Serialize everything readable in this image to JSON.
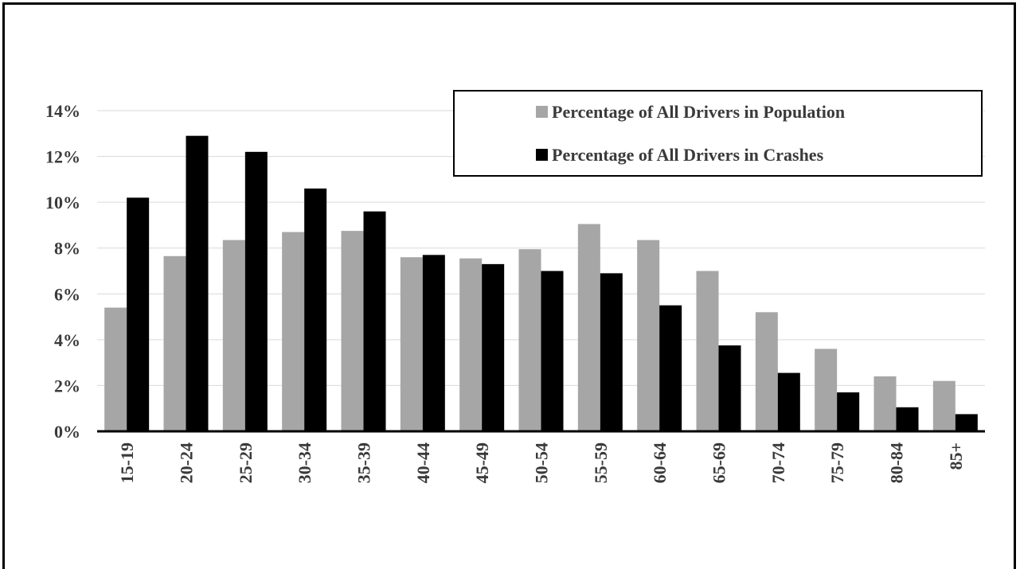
{
  "chart_data": {
    "type": "bar",
    "categories": [
      "15-19",
      "20-24",
      "25-29",
      "30-34",
      "35-39",
      "40-44",
      "45-49",
      "50-54",
      "55-59",
      "60-64",
      "65-69",
      "70-74",
      "75-79",
      "80-84",
      "85+"
    ],
    "series": [
      {
        "name": "Percentage of All Drivers in Population",
        "color": "#a6a6a6",
        "values": [
          5.4,
          7.65,
          8.35,
          8.7,
          8.75,
          7.6,
          7.55,
          7.95,
          9.05,
          8.35,
          7.0,
          5.2,
          3.6,
          2.4,
          2.2
        ]
      },
      {
        "name": "Percentage of All Drivers in Crashes",
        "color": "#000000",
        "values": [
          10.2,
          12.9,
          12.2,
          10.6,
          9.6,
          7.7,
          7.3,
          7.0,
          6.9,
          5.5,
          3.75,
          2.55,
          1.7,
          1.05,
          0.75
        ]
      }
    ],
    "title": "",
    "xlabel": "",
    "ylabel": "",
    "ylim": [
      0,
      14
    ],
    "yticks": [
      "0%",
      "2%",
      "4%",
      "6%",
      "8%",
      "10%",
      "12%",
      "14%"
    ],
    "grid": true,
    "legend_position": "top-right"
  }
}
